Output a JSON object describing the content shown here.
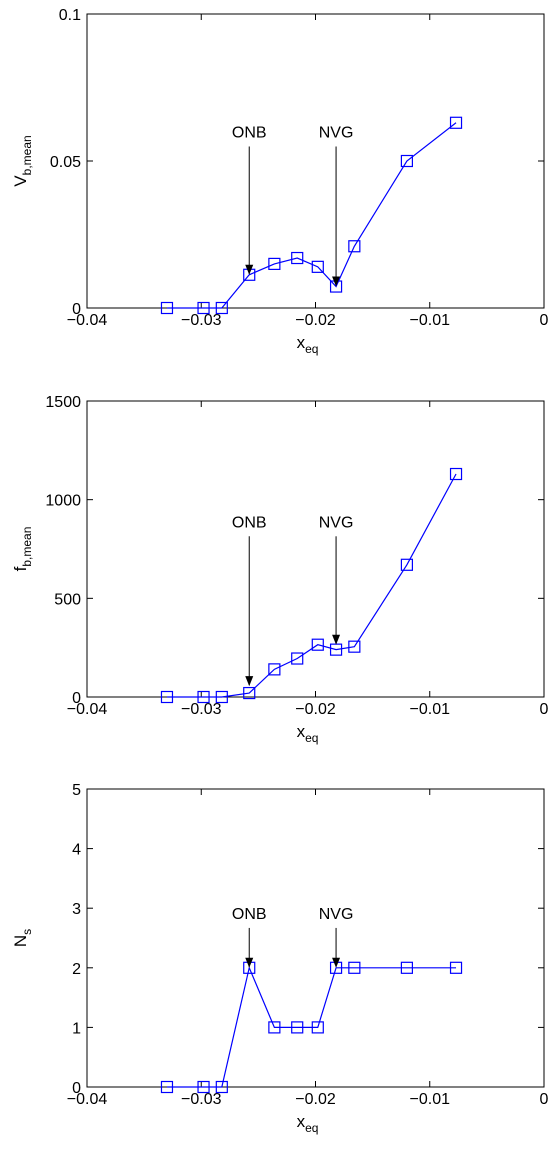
{
  "colors": {
    "series": "#0000ff",
    "axis": "#000000",
    "background": "#ffffff"
  },
  "chart_data": [
    {
      "type": "line",
      "marker": "square",
      "xlabel_main": "x",
      "xlabel_sub": "eq",
      "ylabel_main": "V",
      "ylabel_sub": "b,mean",
      "xlim": [
        -0.04,
        0
      ],
      "ylim": [
        0,
        0.1
      ],
      "xticks": [
        -0.04,
        -0.03,
        -0.02,
        -0.01,
        0
      ],
      "xtick_labels": [
        "−0.04",
        "−0.03",
        "−0.02",
        "−0.01",
        "0"
      ],
      "yticks": [
        0,
        0.05,
        0.1
      ],
      "ytick_labels": [
        "0",
        "0.05",
        "0.1"
      ],
      "x": [
        -0.033,
        -0.0298,
        -0.0282,
        -0.0258,
        -0.0236,
        -0.0216,
        -0.0198,
        -0.0182,
        -0.0166,
        -0.012,
        -0.0077
      ],
      "y": [
        0.0,
        0.0,
        0.0,
        0.0113,
        0.015,
        0.017,
        0.014,
        0.0073,
        0.021,
        0.05,
        0.063
      ],
      "annotations": [
        {
          "text": "ONB",
          "x": -0.0258,
          "y_text": 0.058,
          "y_tip": 0.0113
        },
        {
          "text": "NVG",
          "x": -0.0182,
          "y_text": 0.058,
          "y_tip": 0.0073
        }
      ]
    },
    {
      "type": "line",
      "marker": "square",
      "xlabel_main": "x",
      "xlabel_sub": "eq",
      "ylabel_main": "f",
      "ylabel_sub": "b,mean",
      "xlim": [
        -0.04,
        0
      ],
      "ylim": [
        0,
        1500
      ],
      "xticks": [
        -0.04,
        -0.03,
        -0.02,
        -0.01,
        0
      ],
      "xtick_labels": [
        "−0.04",
        "−0.03",
        "−0.02",
        "−0.01",
        "0"
      ],
      "yticks": [
        0,
        500,
        1000,
        1500
      ],
      "ytick_labels": [
        "0",
        "500",
        "1000",
        "1500"
      ],
      "x": [
        -0.033,
        -0.0298,
        -0.0282,
        -0.0258,
        -0.0236,
        -0.0216,
        -0.0198,
        -0.0182,
        -0.0166,
        -0.012,
        -0.0077
      ],
      "y": [
        0,
        0,
        0,
        20,
        140,
        195,
        265,
        240,
        255,
        670,
        1130
      ],
      "annotations": [
        {
          "text": "ONB",
          "x": -0.0258,
          "y_text": 860,
          "y_tip": 55
        },
        {
          "text": "NVG",
          "x": -0.0182,
          "y_text": 860,
          "y_tip": 265
        }
      ]
    },
    {
      "type": "line",
      "marker": "square",
      "xlabel_main": "x",
      "xlabel_sub": "eq",
      "ylabel_main": "N",
      "ylabel_sub": "s",
      "xlim": [
        -0.04,
        0
      ],
      "ylim": [
        0,
        5
      ],
      "xticks": [
        -0.04,
        -0.03,
        -0.02,
        -0.01,
        0
      ],
      "xtick_labels": [
        "−0.04",
        "−0.03",
        "−0.02",
        "−0.01",
        "0"
      ],
      "yticks": [
        0,
        1,
        2,
        3,
        4,
        5
      ],
      "ytick_labels": [
        "0",
        "1",
        "2",
        "3",
        "4",
        "5"
      ],
      "x": [
        -0.033,
        -0.0298,
        -0.0282,
        -0.0258,
        -0.0236,
        -0.0216,
        -0.0198,
        -0.0182,
        -0.0166,
        -0.012,
        -0.0077
      ],
      "y": [
        0,
        0,
        0,
        2,
        1,
        1,
        1,
        2,
        2,
        2,
        2
      ],
      "annotations": [
        {
          "text": "ONB",
          "x": -0.0258,
          "y_text": 2.82,
          "y_tip": 2.0
        },
        {
          "text": "NVG",
          "x": -0.0182,
          "y_text": 2.82,
          "y_tip": 2.0
        }
      ]
    }
  ]
}
